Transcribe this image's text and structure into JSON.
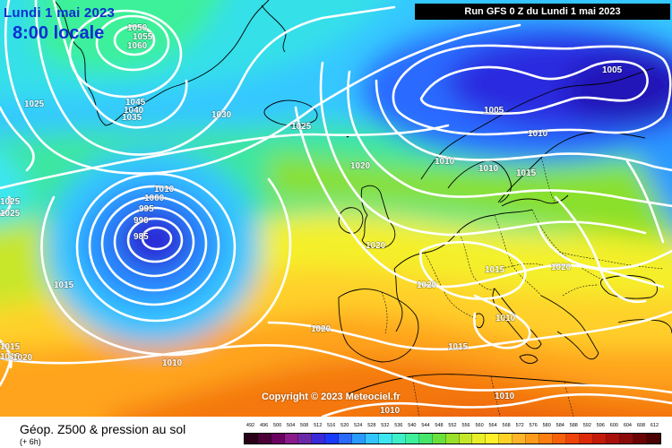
{
  "header": {
    "date_label": "Lundi 1 mai 2023",
    "time_label": "8:00 locale",
    "run_label": "Run GFS 0 Z du Lundi 1 mai 2023"
  },
  "copyright": "Copyright © 2023 Meteociel.fr",
  "footer": {
    "title": "Géop. Z500 & pression au sol",
    "subtitle": "(+ 6h)"
  },
  "legend": {
    "ticks": [
      "492",
      "496",
      "500",
      "504",
      "508",
      "512",
      "516",
      "520",
      "524",
      "528",
      "532",
      "536",
      "540",
      "544",
      "548",
      "552",
      "556",
      "560",
      "564",
      "568",
      "572",
      "576",
      "580",
      "584",
      "588",
      "592",
      "596",
      "600",
      "604",
      "608",
      "612"
    ],
    "colors": [
      "#2a0018",
      "#4b0038",
      "#6a0060",
      "#8a1a8a",
      "#6a2aa8",
      "#3a2ad8",
      "#1a3aff",
      "#2a6aff",
      "#2a9aff",
      "#34c4ff",
      "#3ee6f0",
      "#3ef0c8",
      "#3ef09a",
      "#46e66a",
      "#6ae03a",
      "#9ae02a",
      "#c6e62a",
      "#e8ee2a",
      "#fff02a",
      "#ffd22a",
      "#ffb42a",
      "#ff9a1a",
      "#ff7e12",
      "#f8600a",
      "#ee4408",
      "#dc2a08",
      "#c41a0a",
      "#a8100c",
      "#8a0a0a",
      "#6a0404",
      "#4a0202"
    ]
  },
  "isobars": {
    "labels": [
      "1050",
      "1055",
      "1060",
      "1045",
      "1040",
      "1035",
      "1025",
      "1030",
      "1025",
      "1005",
      "1010",
      "1020",
      "1010",
      "1010",
      "1015",
      "1005",
      "1000",
      "995",
      "990",
      "985",
      "1015",
      "1020",
      "1015",
      "1020",
      "1020",
      "1010",
      "1015",
      "1020",
      "1010",
      "1010",
      "1010",
      "1025",
      "1025",
      "1000",
      "1015",
      "1015",
      "1020"
    ]
  }
}
